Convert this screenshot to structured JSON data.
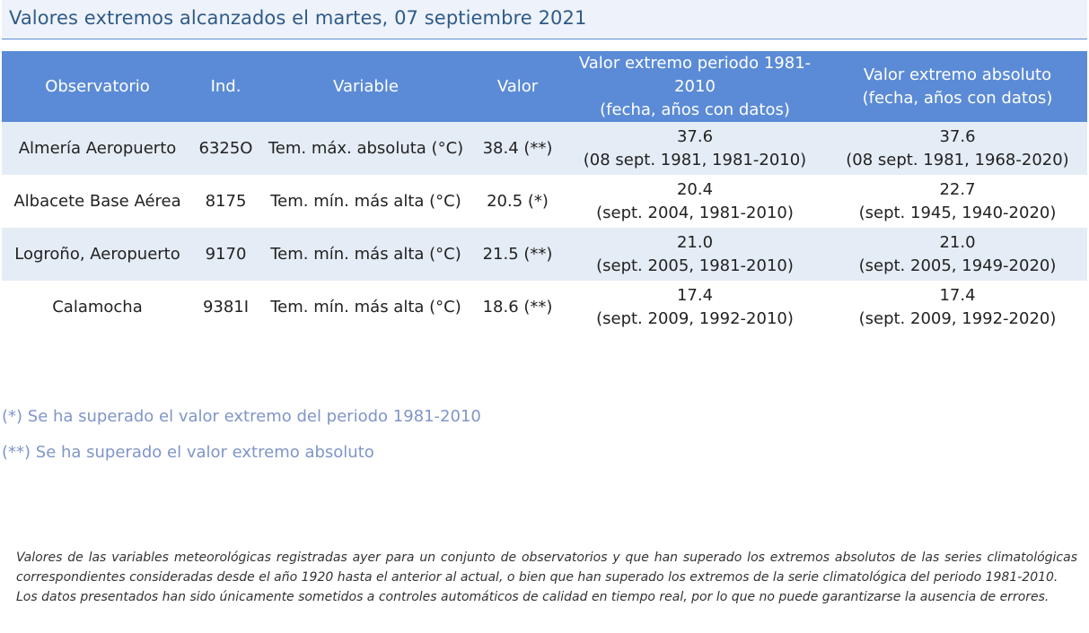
{
  "title": "Valores extremos alcanzados el martes, 07 septiembre 2021",
  "table": {
    "headers": {
      "observatorio": "Observatorio",
      "ind": "Ind.",
      "variable": "Variable",
      "valor": "Valor",
      "periodo_line1": "Valor extremo periodo 1981-2010",
      "periodo_line2": "(fecha, años con datos)",
      "absoluto_line1": "Valor extremo absoluto",
      "absoluto_line2": "(fecha, años con datos)"
    },
    "rows": [
      {
        "observatorio": "Almería Aeropuerto",
        "ind": "6325O",
        "variable": "Tem. máx. absoluta (°C)",
        "valor": "38.4 (**)",
        "periodo_value": "37.6",
        "periodo_detail": "(08 sept. 1981, 1981-2010)",
        "absoluto_value": "37.6",
        "absoluto_detail": "(08 sept. 1981, 1968-2020)"
      },
      {
        "observatorio": "Albacete Base Aérea",
        "ind": "8175",
        "variable": "Tem. mín. más alta (°C)",
        "valor": "20.5 (*)",
        "periodo_value": "20.4",
        "periodo_detail": "(sept. 2004, 1981-2010)",
        "absoluto_value": "22.7",
        "absoluto_detail": "(sept. 1945, 1940-2020)"
      },
      {
        "observatorio": "Logroño, Aeropuerto",
        "ind": "9170",
        "variable": "Tem. mín. más alta (°C)",
        "valor": "21.5 (**)",
        "periodo_value": "21.0",
        "periodo_detail": "(sept. 2005, 1981-2010)",
        "absoluto_value": "21.0",
        "absoluto_detail": "(sept. 2005, 1949-2020)"
      },
      {
        "observatorio": "Calamocha",
        "ind": "9381I",
        "variable": "Tem. mín. más alta (°C)",
        "valor": "18.6 (**)",
        "periodo_value": "17.4",
        "periodo_detail": "(sept. 2009, 1992-2010)",
        "absoluto_value": "17.4",
        "absoluto_detail": "(sept. 2009, 1992-2020)"
      }
    ]
  },
  "notes": {
    "single": "(*) Se ha superado el valor extremo del periodo 1981-2010",
    "double": "(**) Se ha superado el valor extremo absoluto"
  },
  "disclaimer": {
    "paragraph1": "Valores de las variables meteorológicas registradas ayer para un conjunto de observatorios y que han superado los extremos absolutos de las series climatológicas correspondientes consideradas desde el año 1920 hasta el anterior al actual, o bien que han superado los extremos de la serie climatológica del periodo 1981-2010.",
    "paragraph2": "Los datos presentados han sido únicamente sometidos a controles automáticos de calidad en tiempo real, por lo que no puede garantizarse la ausencia de errores."
  },
  "colors": {
    "header_background": "#5b8bd6",
    "row_stripe": "#e4ecf5",
    "title_background": "#eef2fa",
    "title_text": "#2f5b88",
    "note_text": "#7f95c9"
  }
}
